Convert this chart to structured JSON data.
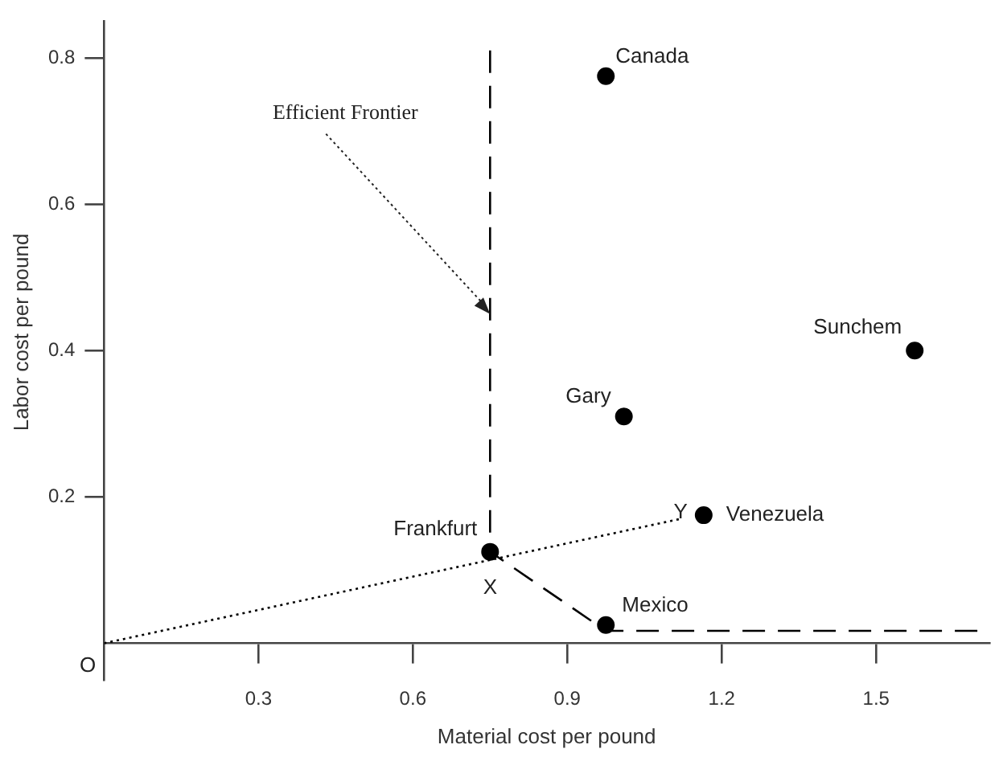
{
  "chart_data": {
    "type": "scatter",
    "xlabel": "Material cost per pound",
    "ylabel": "Labor cost per pound",
    "xlim": [
      0,
      1.72
    ],
    "ylim": [
      -0.05,
      0.85
    ],
    "xticks": [
      0.3,
      0.6,
      0.9,
      1.2,
      1.5
    ],
    "yticks": [
      0.2,
      0.4,
      0.6,
      0.8
    ],
    "grid": false,
    "legend": false,
    "marker": "circle",
    "series": [
      {
        "name": "Canada",
        "color": "#000000",
        "x": [
          0.975
        ],
        "values": [
          0.775
        ]
      },
      {
        "name": "Sunchem",
        "color": "#000000",
        "x": [
          1.575
        ],
        "values": [
          0.4
        ]
      },
      {
        "name": "Gary",
        "color": "#000000",
        "x": [
          1.01
        ],
        "values": [
          0.31
        ]
      },
      {
        "name": "Venezuela",
        "color": "#000000",
        "x": [
          1.165
        ],
        "values": [
          0.175
        ]
      },
      {
        "name": "Frankfurt",
        "color": "#000000",
        "x": [
          0.75
        ],
        "values": [
          0.125
        ]
      },
      {
        "name": "Mexico",
        "color": "#000000",
        "x": [
          0.975
        ],
        "values": [
          0.025
        ]
      },
      {
        "type": "line",
        "line_style": "dashed",
        "marker": "none",
        "color": "#000000",
        "x": [
          0.75,
          0.75,
          0.975,
          1.72
        ],
        "values": [
          0.81,
          0.125,
          0.017,
          0.017
        ]
      },
      {
        "type": "line",
        "line_style": "dotted",
        "marker": "none",
        "color": "#000000",
        "x": [
          0,
          1.12
        ],
        "values": [
          0,
          0.17
        ]
      }
    ],
    "annotations": [
      {
        "text": "Efficient Frontier",
        "x": 0.75,
        "y": 0.45
      },
      {
        "text": "O",
        "x": 0,
        "y": 0
      },
      {
        "text": "X",
        "x": 0.75,
        "y": 0.11
      },
      {
        "text": "Y",
        "x": 1.12,
        "y": 0.17
      }
    ]
  }
}
